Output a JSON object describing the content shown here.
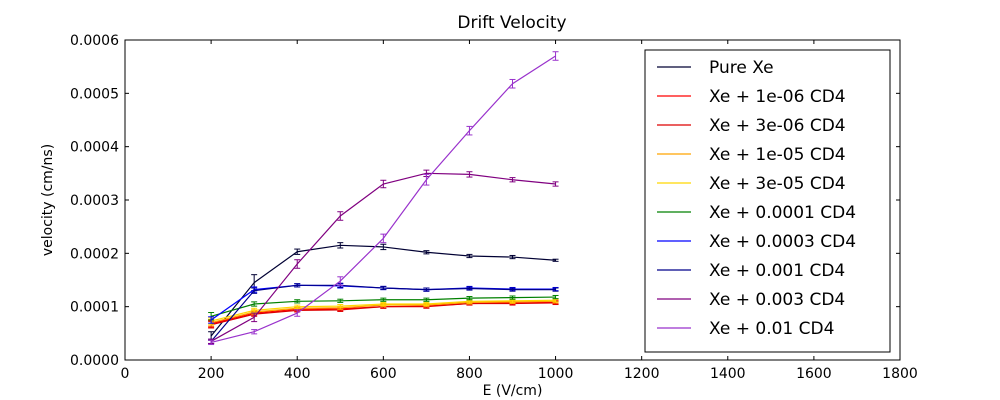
{
  "chart_data": {
    "type": "line",
    "title": "Drift Velocity",
    "xlabel": "E (V/cm)",
    "ylabel": "velocity (cm/ns)",
    "xlim": [
      0,
      1800
    ],
    "ylim": [
      0,
      0.0006
    ],
    "xticks": [
      "0",
      "200",
      "400",
      "600",
      "800",
      "1000",
      "1200",
      "1400",
      "1600",
      "1800"
    ],
    "xtick_values": [
      0,
      200,
      400,
      600,
      800,
      1000,
      1200,
      1400,
      1600,
      1800
    ],
    "yticks": [
      "0.0000",
      "0.0001",
      "0.0002",
      "0.0003",
      "0.0004",
      "0.0005",
      "0.0006"
    ],
    "ytick_values": [
      0,
      0.0001,
      0.0002,
      0.0003,
      0.0004,
      0.0005,
      0.0006
    ],
    "grid": false,
    "legend_position": "top-right",
    "x": [
      200,
      300,
      400,
      500,
      600,
      700,
      800,
      900,
      1000
    ],
    "series": [
      {
        "name": "Pure Xe",
        "color": "#000033",
        "values": [
          4.5e-05,
          0.000145,
          0.000203,
          0.000215,
          0.000212,
          0.000202,
          0.000195,
          0.000193,
          0.000187
        ],
        "errors": [
          8e-06,
          1.5e-05,
          5e-06,
          5e-06,
          5e-06,
          3e-06,
          3e-06,
          3e-06,
          2e-06
        ]
      },
      {
        "name": "Xe + 1e-06 CD4",
        "color": "#ff0000",
        "values": [
          6.8e-05,
          8.8e-05,
          9.5e-05,
          9.6e-05,
          0.0001,
          0.000101,
          0.000106,
          0.000107,
          0.000108
        ],
        "errors": [
          6e-06,
          4e-06,
          3e-06,
          3e-06,
          3e-06,
          3e-06,
          3e-06,
          3e-06,
          3e-06
        ]
      },
      {
        "name": "Xe + 3e-06 CD4",
        "color": "#dd0000",
        "values": [
          6.6e-05,
          8.6e-05,
          9.3e-05,
          9.4e-05,
          0.0001,
          0.0001,
          0.000106,
          0.000106,
          0.000107
        ],
        "errors": [
          6e-06,
          4e-06,
          3e-06,
          3e-06,
          3e-06,
          3e-06,
          3e-06,
          3e-06,
          3e-06
        ]
      },
      {
        "name": "Xe + 1e-05 CD4",
        "color": "#ffa500",
        "values": [
          7e-05,
          9e-05,
          9.7e-05,
          9.8e-05,
          0.000103,
          0.000103,
          0.000108,
          0.000109,
          0.00011
        ],
        "errors": [
          6e-06,
          4e-06,
          3e-06,
          3e-06,
          3e-06,
          3e-06,
          3e-06,
          3e-06,
          3e-06
        ]
      },
      {
        "name": "Xe + 3e-05 CD4",
        "color": "#ffd700",
        "values": [
          7.3e-05,
          9.3e-05,
          0.0001,
          0.000101,
          0.000105,
          0.000105,
          0.00011,
          0.000111,
          0.000112
        ],
        "errors": [
          6e-06,
          4e-06,
          3e-06,
          3e-06,
          3e-06,
          3e-06,
          3e-06,
          3e-06,
          3e-06
        ]
      },
      {
        "name": "Xe + 0.0001 CD4",
        "color": "#008000",
        "values": [
          8.2e-05,
          0.000105,
          0.00011,
          0.000111,
          0.000113,
          0.000113,
          0.000116,
          0.000117,
          0.000118
        ],
        "errors": [
          7e-06,
          4e-06,
          3e-06,
          3e-06,
          3e-06,
          3e-06,
          3e-06,
          3e-06,
          3e-06
        ]
      },
      {
        "name": "Xe + 0.0003 CD4",
        "color": "#0000ff",
        "values": [
          7.5e-05,
          0.000132,
          0.00014,
          0.000139,
          0.000135,
          0.000132,
          0.000135,
          0.000133,
          0.000133
        ],
        "errors": [
          6e-06,
          5e-06,
          3e-06,
          4e-06,
          3e-06,
          3e-06,
          3e-06,
          3e-06,
          3e-06
        ]
      },
      {
        "name": "Xe + 0.001 CD4",
        "color": "#00008b",
        "values": [
          3.5e-05,
          0.00013,
          0.00014,
          0.00014,
          0.000135,
          0.000132,
          0.000134,
          0.000132,
          0.000132
        ],
        "errors": [
          4e-06,
          5e-06,
          3e-06,
          4e-06,
          3e-06,
          3e-06,
          3e-06,
          3e-06,
          3e-06
        ]
      },
      {
        "name": "Xe + 0.003 CD4",
        "color": "#800080",
        "values": [
          3.5e-05,
          8e-05,
          0.00018,
          0.00027,
          0.00033,
          0.00035,
          0.000348,
          0.000338,
          0.00033
        ],
        "errors": [
          4e-06,
          8e-06,
          8e-06,
          8e-06,
          7e-06,
          6e-06,
          5e-06,
          4e-06,
          4e-06
        ]
      },
      {
        "name": "Xe + 0.01 CD4",
        "color": "#9932cc",
        "values": [
          3.3e-05,
          5.3e-05,
          8.8e-05,
          0.000148,
          0.000228,
          0.000338,
          0.00043,
          0.000518,
          0.00057
        ],
        "errors": [
          4e-06,
          4e-06,
          6e-06,
          8e-06,
          8e-06,
          1e-05,
          8e-06,
          8e-06,
          8e-06
        ]
      }
    ]
  }
}
